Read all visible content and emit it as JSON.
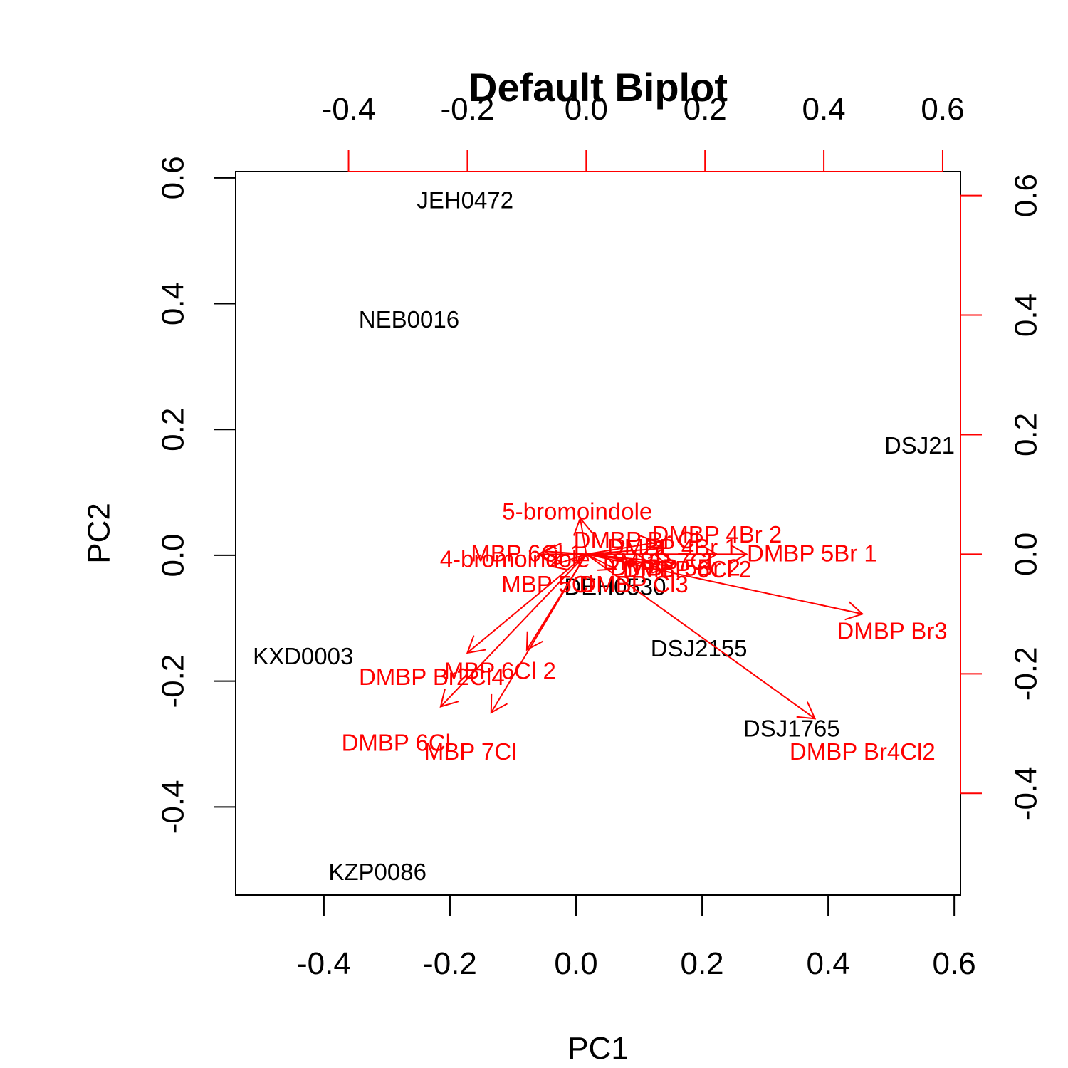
{
  "chart_data": {
    "type": "scatter",
    "title": "Default Biplot",
    "xlabel": "PC1",
    "ylabel": "PC2",
    "colors": {
      "axes": "#000000",
      "loadings": "#ff0000",
      "observations": "#000000"
    },
    "bottom_axis": {
      "range": [
        -0.54,
        0.61
      ],
      "ticks": [
        -0.4,
        -0.2,
        0.0,
        0.2,
        0.4,
        0.6
      ],
      "tick_labels": [
        "-0.4",
        "-0.2",
        "0.0",
        "0.2",
        "0.4",
        "0.6"
      ]
    },
    "left_axis": {
      "range": [
        -0.54,
        0.61
      ],
      "ticks": [
        -0.4,
        -0.2,
        0.0,
        0.2,
        0.4,
        0.6
      ],
      "tick_labels": [
        "-0.4",
        "-0.2",
        "0.0",
        "0.2",
        "0.4",
        "0.6"
      ]
    },
    "top_axis": {
      "range": [
        -0.59,
        0.63
      ],
      "ticks": [
        -0.4,
        -0.2,
        0.0,
        0.2,
        0.4,
        0.6
      ],
      "tick_labels": [
        "-0.4",
        "-0.2",
        "0.0",
        "0.2",
        "0.4",
        "0.6"
      ]
    },
    "right_axis": {
      "range": [
        -0.57,
        0.64
      ],
      "ticks": [
        -0.4,
        -0.2,
        0.0,
        0.2,
        0.4,
        0.6
      ],
      "tick_labels": [
        "-0.4",
        "-0.2",
        "0.0",
        "0.2",
        "0.4",
        "0.6"
      ]
    },
    "observations": [
      {
        "name": "JEH0472",
        "x": -0.176,
        "y": 0.565
      },
      {
        "name": "NEB0016",
        "x": -0.265,
        "y": 0.375
      },
      {
        "name": "DSJ21",
        "x": 0.545,
        "y": 0.175
      },
      {
        "name": "KXD0003",
        "x": -0.433,
        "y": -0.16
      },
      {
        "name": "DSJ2155",
        "x": 0.195,
        "y": -0.148
      },
      {
        "name": "DSJ1765",
        "x": 0.342,
        "y": -0.275
      },
      {
        "name": "KZP0086",
        "x": -0.315,
        "y": -0.503
      },
      {
        "name": "DEH0530",
        "x": 0.062,
        "y": -0.05
      }
    ],
    "loadings": [
      {
        "name": "5-bromoindole",
        "x": -0.01,
        "y": 0.06,
        "label_x": -0.015,
        "label_y": 0.072
      },
      {
        "name": "DMBP 4Br 2",
        "x": 0.22,
        "y": 0.0,
        "label_x": 0.22,
        "label_y": 0.033
      },
      {
        "name": "DMBP 5Br 1",
        "x": 0.27,
        "y": 0.0,
        "label_x": 0.38,
        "label_y": 0.002
      },
      {
        "name": "DMBP Br3",
        "x": 0.465,
        "y": -0.1,
        "label_x": 0.515,
        "label_y": -0.128
      },
      {
        "name": "DMBP Br4Cl2",
        "x": 0.385,
        "y": -0.275,
        "label_x": 0.465,
        "label_y": -0.33
      },
      {
        "name": "DMBP Br2Cl4",
        "x": -0.2,
        "y": -0.165,
        "label_x": -0.26,
        "label_y": -0.205
      },
      {
        "name": "MBP 6Cl 2",
        "x": -0.1,
        "y": -0.16,
        "label_x": -0.145,
        "label_y": -0.195
      },
      {
        "name": "DMBP 6Cl",
        "x": -0.245,
        "y": -0.255,
        "label_x": -0.32,
        "label_y": -0.315
      },
      {
        "name": "MBP 7Cl",
        "x": -0.16,
        "y": -0.265,
        "label_x": -0.195,
        "label_y": -0.33
      },
      {
        "name": "DMBP Br Cl",
        "x": 0.12,
        "y": 0.02,
        "label_x": 0.085,
        "label_y": 0.024
      },
      {
        "name": "DMBP 5Br 2",
        "x": 0.14,
        "y": -0.02,
        "label_x": 0.15,
        "label_y": -0.022
      },
      {
        "name": "DMBP 4Br 1",
        "x": 0.13,
        "y": 0.01,
        "label_x": 0.145,
        "label_y": 0.012
      },
      {
        "name": "MBP 5Cl",
        "x": -0.06,
        "y": -0.02,
        "label_x": -0.065,
        "label_y": -0.05
      },
      {
        "name": "DMBP Cl3",
        "x": 0.05,
        "y": -0.025,
        "label_x": 0.08,
        "label_y": -0.05
      },
      {
        "name": "DMBP 6Cl 2",
        "x": 0.15,
        "y": -0.015,
        "label_x": 0.17,
        "label_y": -0.025
      },
      {
        "name": "4-bromoindole",
        "x": -0.08,
        "y": 0.0,
        "label_x": -0.12,
        "label_y": -0.008
      },
      {
        "name": "MBP 6Cl 1",
        "x": -0.07,
        "y": 0.005,
        "label_x": -0.1,
        "label_y": 0.002
      },
      {
        "name": "DMBP 7Cl",
        "x": 0.1,
        "y": -0.01,
        "label_x": 0.12,
        "label_y": -0.012
      }
    ]
  }
}
